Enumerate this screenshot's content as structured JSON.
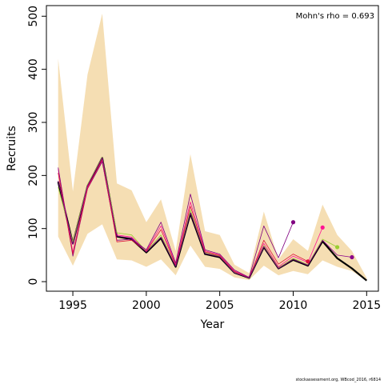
{
  "chart_data": {
    "type": "line",
    "xlabel": "Year",
    "ylabel": "Recruits",
    "xlim": [
      1993.2,
      2015.8
    ],
    "ylim": [
      -18,
      520
    ],
    "xticks": [
      1995,
      2000,
      2005,
      2010,
      2015
    ],
    "yticks": [
      0,
      100,
      200,
      300,
      400,
      500
    ],
    "annotation": "Mohn's rho = 0.693",
    "annotation_position": "top-right",
    "band": {
      "color": "#f5deb3",
      "x": [
        1994,
        1995,
        1996,
        1997,
        1998,
        1999,
        2000,
        2001,
        2002,
        2003,
        2004,
        2005,
        2006,
        2007,
        2008,
        2009,
        2010,
        2011,
        2012,
        2013,
        2014,
        2015
      ],
      "upper": [
        420,
        170,
        390,
        505,
        185,
        172,
        112,
        155,
        58,
        240,
        95,
        88,
        32,
        16,
        132,
        42,
        80,
        58,
        145,
        88,
        58,
        7
      ],
      "lower": [
        85,
        30,
        90,
        108,
        42,
        40,
        28,
        42,
        12,
        68,
        28,
        24,
        8,
        3,
        30,
        12,
        20,
        14,
        40,
        28,
        20,
        1
      ]
    },
    "series": [
      {
        "color": "#000000",
        "x": [
          1994,
          1995,
          1996,
          1997,
          1998,
          1999,
          2000,
          2001,
          2002,
          2003,
          2004,
          2005,
          2006,
          2007,
          2008,
          2009,
          2010,
          2011,
          2012,
          2013,
          2014,
          2015
        ],
        "values": [
          188,
          72,
          180,
          233,
          85,
          80,
          55,
          82,
          28,
          128,
          52,
          46,
          17,
          7,
          65,
          25,
          41,
          30,
          76,
          44,
          25,
          2
        ],
        "width": 2.2,
        "endpoint": false
      },
      {
        "color": "#ff1493",
        "x": [
          1994,
          1995,
          1996,
          1997,
          1998,
          1999,
          2000,
          2001,
          2002,
          2003,
          2004,
          2005,
          2006,
          2007,
          2008,
          2009,
          2010,
          2011,
          2012
        ],
        "values": [
          212,
          55,
          178,
          228,
          88,
          84,
          58,
          105,
          32,
          150,
          58,
          50,
          20,
          8,
          72,
          28,
          48,
          36,
          102
        ],
        "width": 0.8,
        "endpoint": true
      },
      {
        "color": "#9acd32",
        "x": [
          1994,
          1995,
          1996,
          1997,
          1998,
          1999,
          2000,
          2001,
          2002,
          2003,
          2004,
          2005,
          2006,
          2007,
          2008,
          2009,
          2010,
          2011,
          2012,
          2013
        ],
        "values": [
          178,
          75,
          183,
          234,
          92,
          88,
          57,
          88,
          30,
          135,
          55,
          48,
          18,
          7,
          68,
          26,
          44,
          32,
          80,
          65
        ],
        "width": 0.8,
        "endpoint": true
      },
      {
        "color": "#800080",
        "x": [
          1994,
          1995,
          1996,
          1997,
          1998,
          1999,
          2000,
          2001,
          2002,
          2003,
          2004,
          2005,
          2006,
          2007,
          2008,
          2009,
          2010
        ],
        "values": [
          215,
          48,
          175,
          226,
          78,
          80,
          60,
          112,
          35,
          165,
          60,
          52,
          22,
          8,
          105,
          45,
          112
        ],
        "width": 0.8,
        "endpoint": true
      },
      {
        "color": "#dc143c",
        "x": [
          1994,
          1995,
          1996,
          1997,
          1998,
          1999,
          2000,
          2001,
          2002,
          2003,
          2004,
          2005,
          2006,
          2007,
          2008,
          2009,
          2010,
          2011
        ],
        "values": [
          205,
          52,
          176,
          230,
          75,
          78,
          57,
          98,
          31,
          142,
          56,
          49,
          19,
          7,
          78,
          33,
          52,
          38
        ],
        "width": 0.8,
        "endpoint": true
      },
      {
        "color": "#8b008b",
        "x": [
          1994,
          1995,
          1996,
          1997,
          1998,
          1999,
          2000,
          2001,
          2002,
          2003,
          2004,
          2005,
          2006,
          2007,
          2008,
          2009,
          2010,
          2011,
          2012,
          2013,
          2014
        ],
        "values": [
          190,
          70,
          181,
          233,
          86,
          82,
          56,
          84,
          29,
          130,
          53,
          47,
          17,
          7,
          66,
          25,
          42,
          31,
          78,
          50,
          46
        ],
        "width": 0.8,
        "endpoint": true
      }
    ]
  },
  "credit": "stockassessment.org, WBcod_2016, r6814"
}
